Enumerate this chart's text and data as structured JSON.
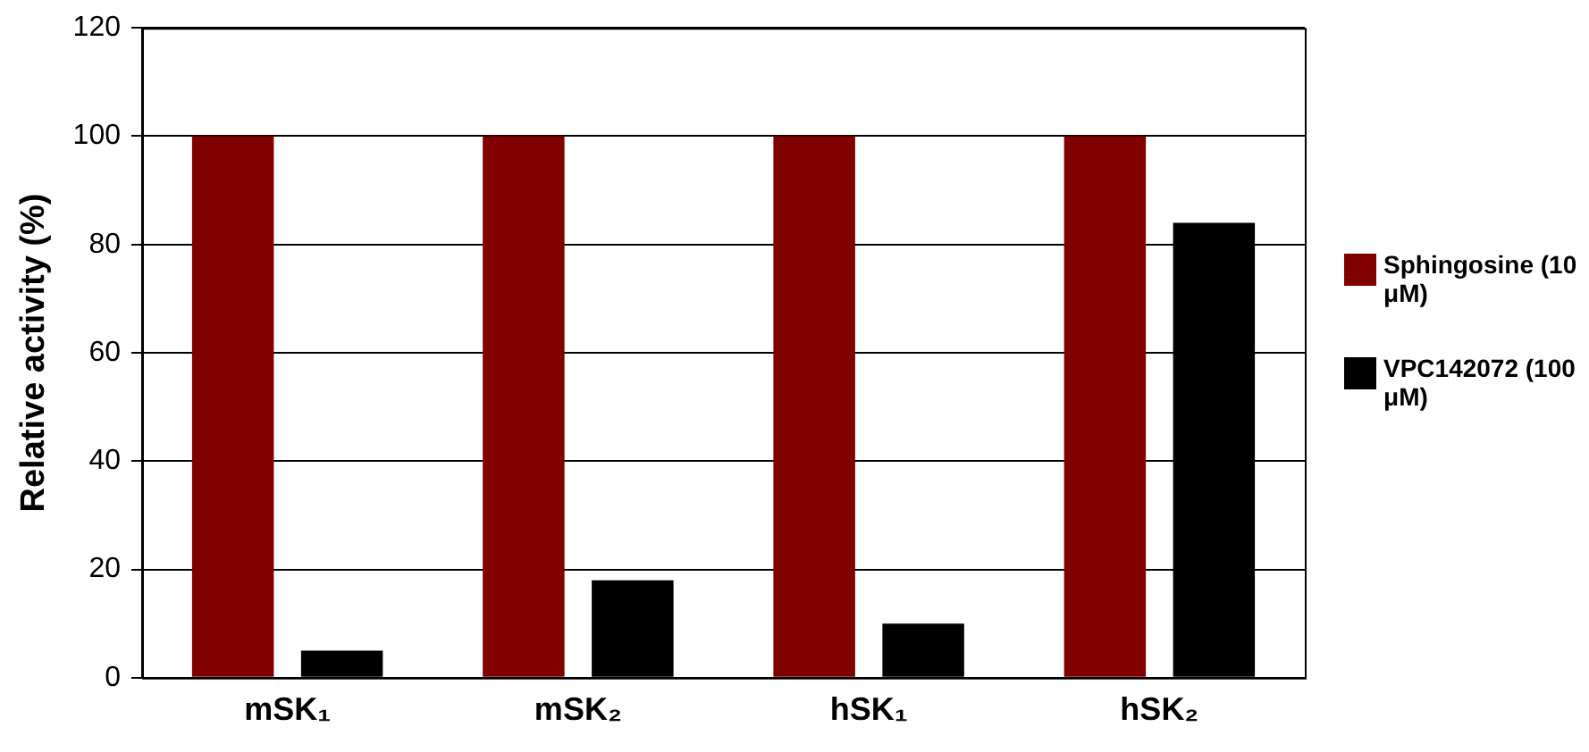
{
  "chart_data": {
    "type": "bar",
    "ylabel": "Relative activity (%)",
    "categories": [
      "mSK₁",
      "mSK₂",
      "hSK₁",
      "hSK₂"
    ],
    "series": [
      {
        "name": "Sphingosine (10 μM)",
        "color": "#800000",
        "values": [
          100,
          100,
          100,
          100
        ]
      },
      {
        "name": "VPC142072 (100 μM)",
        "color": "#000000",
        "values": [
          5,
          18,
          10,
          84
        ]
      }
    ],
    "ylim": [
      0,
      120
    ],
    "yticks": [
      0,
      20,
      40,
      60,
      80,
      100,
      120
    ],
    "grid": "y",
    "legend": "right"
  }
}
